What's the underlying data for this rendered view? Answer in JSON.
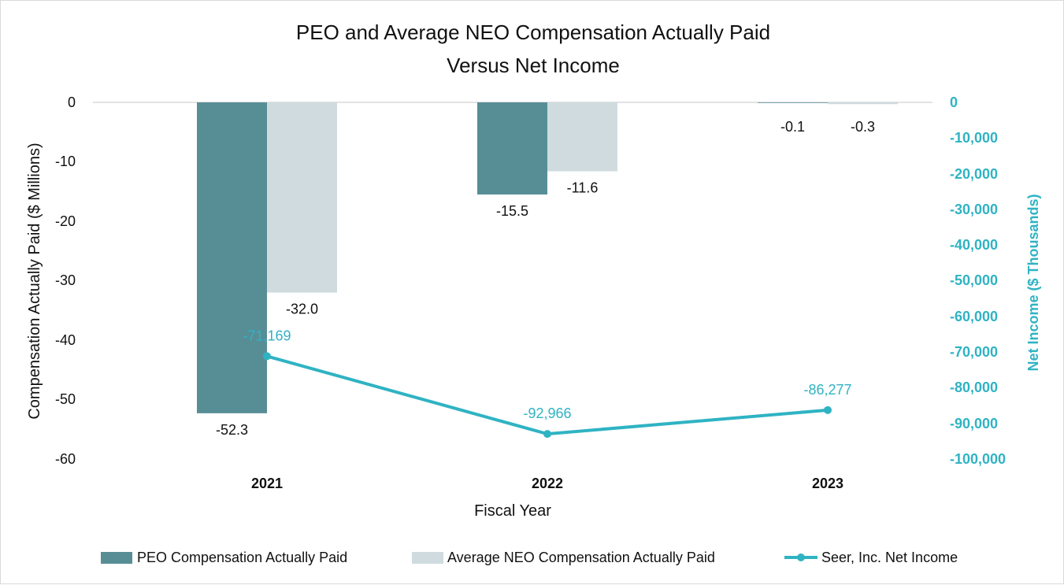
{
  "chart_data": {
    "type": "bar",
    "title_lines": [
      "PEO and Average NEO Compensation Actually Paid",
      "Versus Net Income"
    ],
    "categories": [
      "2021",
      "2022",
      "2023"
    ],
    "xlabel": "Fiscal Year",
    "ylabel": "Compensation Actually Paid ($ Millions)",
    "y2label": "Net Income ($ Thousands)",
    "ylim": [
      -60,
      0
    ],
    "y2lim": [
      -100000,
      0
    ],
    "yticks": [
      "0",
      "-10",
      "-20",
      "-30",
      "-40",
      "-50",
      "-60"
    ],
    "y2ticks": [
      "0",
      "-10,000",
      "-20,000",
      "-30,000",
      "-40,000",
      "-50,000",
      "-60,000",
      "-70,000",
      "-80,000",
      "-90,000",
      "-100,000"
    ],
    "series": [
      {
        "name": "PEO Compensation Actually Paid",
        "kind": "bar",
        "axis": "left",
        "color": "#578e96",
        "values": [
          -52.3,
          -15.5,
          -0.1
        ],
        "labels": [
          "-52.3",
          "-15.5",
          "-0.1"
        ]
      },
      {
        "name": "Average NEO Compensation Actually Paid",
        "kind": "bar",
        "axis": "left",
        "color": "#cfdbdf",
        "values": [
          -32.0,
          -11.6,
          -0.3
        ],
        "labels": [
          "-32.0",
          "-11.6",
          "-0.3"
        ]
      },
      {
        "name": "Seer, Inc. Net Income",
        "kind": "line",
        "axis": "right",
        "color": "#2fb3c3",
        "values": [
          -71169,
          -92966,
          -86277
        ],
        "labels": [
          "-71,169",
          "-92,966",
          "-86,277"
        ]
      }
    ]
  }
}
